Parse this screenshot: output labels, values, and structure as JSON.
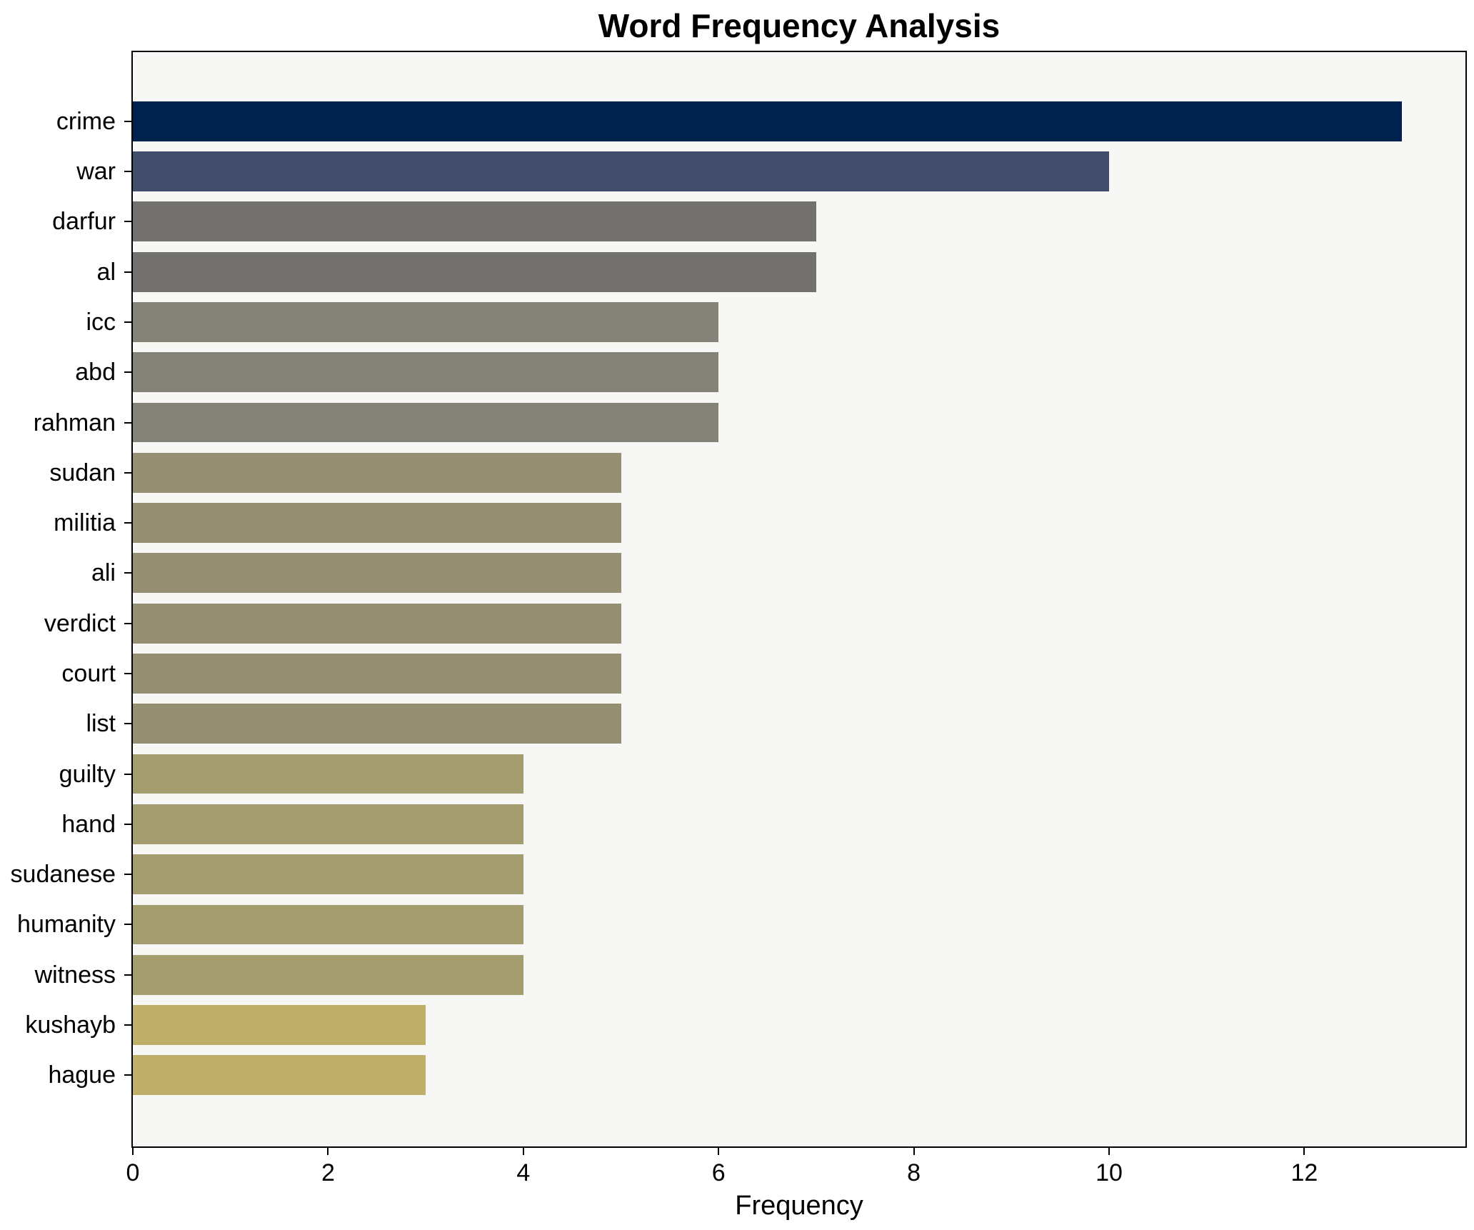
{
  "title": "Word Frequency Analysis",
  "colors": {
    "figure_background": "#ffffff",
    "plot_background": "#f7f7f6",
    "spine": "#000000",
    "text": "#000000"
  },
  "chart_data": {
    "type": "bar",
    "orientation": "horizontal",
    "title": "Word Frequency Analysis",
    "xlabel": "Frequency",
    "ylabel": "",
    "categories": [
      "crime",
      "war",
      "darfur",
      "al",
      "icc",
      "abd",
      "rahman",
      "sudan",
      "militia",
      "ali",
      "verdict",
      "court",
      "list",
      "guilty",
      "hand",
      "sudanese",
      "humanity",
      "witness",
      "kushayb",
      "hague"
    ],
    "values": [
      13,
      10,
      7,
      7,
      6,
      6,
      6,
      5,
      5,
      5,
      5,
      5,
      5,
      4,
      4,
      4,
      4,
      4,
      3,
      3
    ],
    "bar_colors": [
      "#00224e",
      "#414d6b",
      "#72716f",
      "#72716f",
      "#858277",
      "#858277",
      "#858277",
      "#949071",
      "#949071",
      "#949071",
      "#949071",
      "#949071",
      "#949071",
      "#a49d6f",
      "#a49d6f",
      "#a49d6f",
      "#a49d6f",
      "#a49d6f",
      "#bfb069",
      "#bfb069"
    ],
    "xlim": [
      0,
      13.65
    ],
    "xticks": [
      0,
      2,
      4,
      6,
      8,
      10,
      12
    ],
    "grid": false,
    "legend": null
  }
}
